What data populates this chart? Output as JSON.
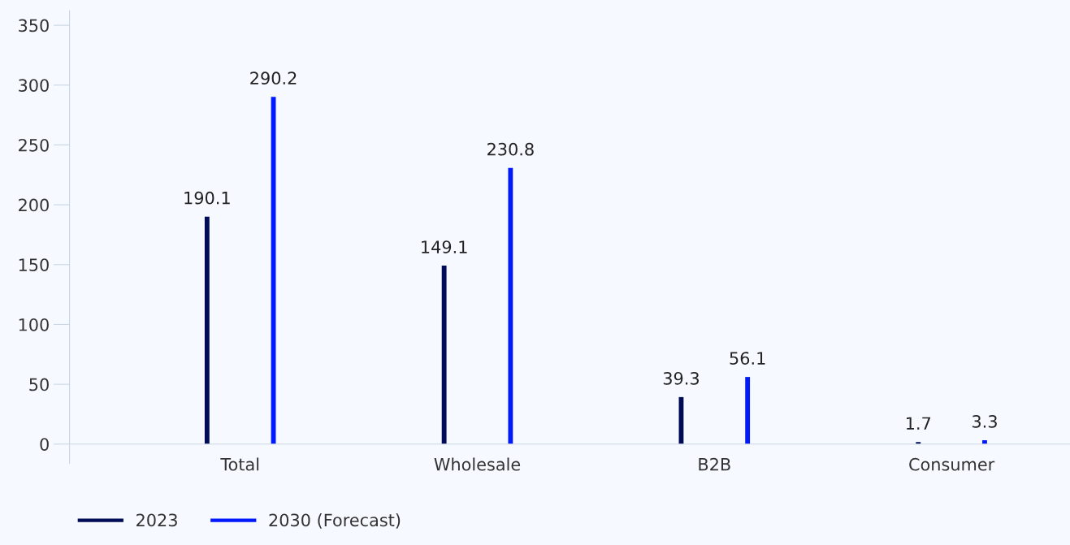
{
  "chart_data": {
    "type": "bar",
    "categories": [
      "Total",
      "Wholesale",
      "B2B",
      "Consumer"
    ],
    "series": [
      {
        "name": "2023",
        "color": "#000c55",
        "values": [
          190.1,
          149.1,
          39.3,
          1.7
        ]
      },
      {
        "name": "2030 (Forecast)",
        "color": "#0019ff",
        "values": [
          290.2,
          230.8,
          56.1,
          3.3
        ]
      }
    ],
    "ylim": [
      -16,
      362
    ],
    "yticks": [
      0,
      50,
      100,
      150,
      200,
      250,
      300,
      350
    ],
    "data_labels": true,
    "grid": false,
    "legend": "bottom left"
  }
}
